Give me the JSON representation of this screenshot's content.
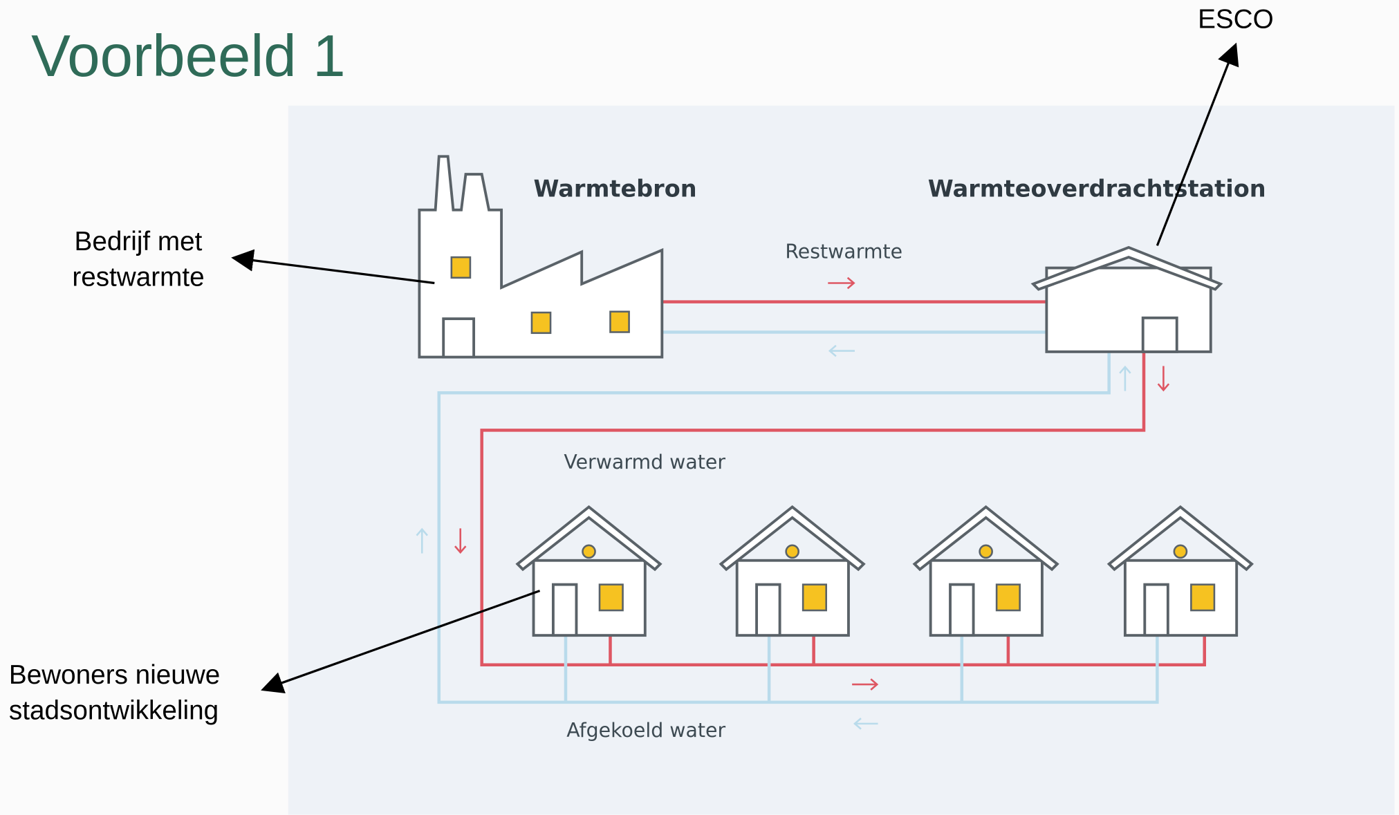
{
  "title": "Voorbeeld 1",
  "annotations": {
    "esco": "ESCO",
    "company": [
      "Bedrijf met",
      "restwarmte"
    ],
    "residents": [
      "Bewoners nieuwe",
      "stadsontwikkeling"
    ]
  },
  "diagram": {
    "source": "Warmtebron",
    "station": "Warmteoverdrachtstation",
    "residual_heat": "Restwarmte",
    "heated_water": "Verwarmd water",
    "cooled_water": "Afgekoeld water"
  }
}
